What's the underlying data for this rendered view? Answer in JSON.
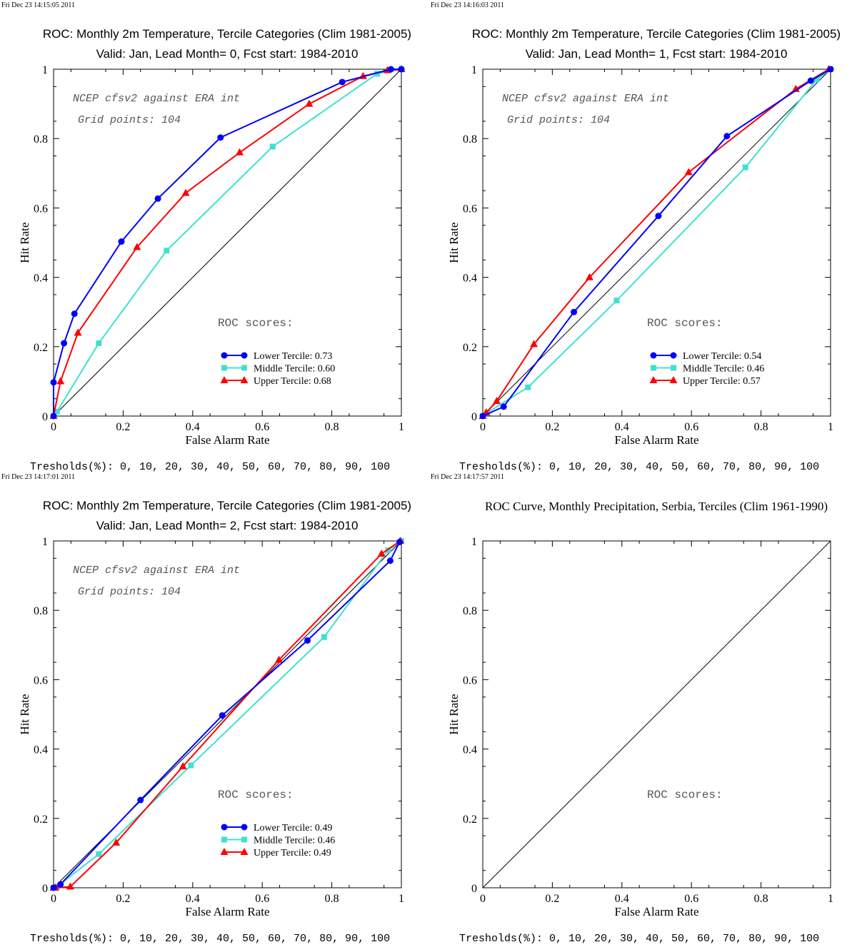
{
  "chart_data": [
    {
      "type": "line",
      "timestamp": "Fri Dec 23 14:15:05 2011",
      "title": "ROC: Monthly 2m Temperature, Tercile Categories (Clim 1981-2005)",
      "subtitle": "Valid: Jan, Lead Month= 0, Fcst start: 1984-2010",
      "xlabel": "False Alarm Rate",
      "ylabel": "Hit Rate",
      "xlim": [
        0,
        1
      ],
      "ylim": [
        0,
        1
      ],
      "xticks": [
        "0",
        "0.2",
        "0.4",
        "0.6",
        "0.8",
        "1"
      ],
      "yticks": [
        "0",
        "0.2",
        "0.4",
        "0.6",
        "0.8",
        "1"
      ],
      "note1": "NCEP cfsv2 against ERA int",
      "note2": "Grid points:  104",
      "scores_heading": "ROC scores:",
      "thresholds": "Tresholds(%): 0, 10, 20, 30, 40, 50, 60, 70, 80, 90, 100",
      "diagonal": true,
      "series": [
        {
          "name": "Lower Tercile: 0.73",
          "color": "#0000ff",
          "marker": "circle",
          "x": [
            0,
            0,
            0.03,
            0.06,
            0.195,
            0.3,
            0.48,
            0.83,
            0.97,
            1.0
          ],
          "y": [
            0,
            0.097,
            0.21,
            0.295,
            0.503,
            0.627,
            0.803,
            0.963,
            1.0,
            1.0
          ]
        },
        {
          "name": "Middle Tercile: 0.60",
          "color": "#40e0d0",
          "marker": "square",
          "x": [
            0,
            0.01,
            0.13,
            0.325,
            0.63,
            0.93,
            1.0
          ],
          "y": [
            0,
            0.013,
            0.21,
            0.477,
            0.777,
            0.987,
            1.0
          ]
        },
        {
          "name": "Upper Tercile: 0.68",
          "color": "#ff0000",
          "marker": "triangle",
          "x": [
            0,
            0.02,
            0.07,
            0.24,
            0.38,
            0.535,
            0.735,
            0.89,
            0.96,
            1.0
          ],
          "y": [
            0,
            0.1,
            0.24,
            0.487,
            0.643,
            0.76,
            0.9,
            0.98,
            0.997,
            1.0
          ]
        }
      ]
    },
    {
      "type": "line",
      "timestamp": "Fri Dec 23 14:16:03 2011",
      "title": "ROC: Monthly 2m Temperature, Tercile Categories (Clim 1981-2005)",
      "subtitle": "Valid: Jan, Lead Month= 1, Fcst start: 1984-2010",
      "xlabel": "False Alarm Rate",
      "ylabel": "Hit Rate",
      "xlim": [
        0,
        1
      ],
      "ylim": [
        0,
        1
      ],
      "xticks": [
        "0",
        "0.2",
        "0.4",
        "0.6",
        "0.8",
        "1"
      ],
      "yticks": [
        "0",
        "0.2",
        "0.4",
        "0.6",
        "0.8",
        "1"
      ],
      "note1": "NCEP cfsv2 against ERA int",
      "note2": "Grid points:  104",
      "scores_heading": "ROC scores:",
      "thresholds": "Tresholds(%): 0, 10, 20, 30, 40, 50, 60, 70, 80, 90, 100",
      "diagonal": true,
      "series": [
        {
          "name": "Lower Tercile: 0.54",
          "color": "#0000ff",
          "marker": "circle",
          "x": [
            0,
            0.06,
            0.262,
            0.505,
            0.702,
            0.943,
            1.0
          ],
          "y": [
            0,
            0.027,
            0.3,
            0.577,
            0.807,
            0.967,
            1.0
          ]
        },
        {
          "name": "Middle Tercile: 0.46",
          "color": "#40e0d0",
          "marker": "square",
          "x": [
            0,
            0.013,
            0.13,
            0.385,
            0.755,
            0.96,
            1.0
          ],
          "y": [
            0,
            0.01,
            0.083,
            0.333,
            0.717,
            0.97,
            1.0
          ]
        },
        {
          "name": "Upper Tercile: 0.57",
          "color": "#ff0000",
          "marker": "triangle",
          "x": [
            0,
            0.01,
            0.04,
            0.147,
            0.307,
            0.592,
            0.9,
            0.995
          ],
          "y": [
            0,
            0.01,
            0.043,
            0.207,
            0.4,
            0.703,
            0.943,
            1.0
          ]
        }
      ]
    },
    {
      "type": "line",
      "timestamp": "Fri Dec 23 14:17:01 2011",
      "title": "ROC: Monthly 2m Temperature, Tercile Categories (Clim 1981-2005)",
      "subtitle": "Valid: Jan, Lead Month= 2, Fcst start: 1984-2010",
      "xlabel": "False Alarm Rate",
      "ylabel": "Hit Rate",
      "xlim": [
        0,
        1
      ],
      "ylim": [
        0,
        1
      ],
      "xticks": [
        "0",
        "0.2",
        "0.4",
        "0.6",
        "0.8",
        "1"
      ],
      "yticks": [
        "0",
        "0.2",
        "0.4",
        "0.6",
        "0.8",
        "1"
      ],
      "note1": "NCEP cfsv2 against ERA int",
      "note2": "Grid points:  104",
      "scores_heading": "ROC scores:",
      "thresholds": "Tresholds(%): 0, 10, 20, 30, 40, 50, 60, 70, 80, 90, 100",
      "diagonal": true,
      "series": [
        {
          "name": "Lower Tercile: 0.49",
          "color": "#0000ff",
          "marker": "circle",
          "x": [
            0,
            0.02,
            0.25,
            0.485,
            0.73,
            0.968,
            0.995
          ],
          "y": [
            0,
            0.01,
            0.253,
            0.497,
            0.713,
            0.943,
            0.997
          ]
        },
        {
          "name": "Middle Tercile: 0.46",
          "color": "#40e0d0",
          "marker": "square",
          "x": [
            0,
            0.01,
            0.13,
            0.395,
            0.778,
            0.962,
            1.0
          ],
          "y": [
            0,
            0.003,
            0.097,
            0.353,
            0.723,
            0.973,
            1.0
          ]
        },
        {
          "name": "Upper Tercile: 0.49",
          "color": "#ff0000",
          "marker": "triangle",
          "x": [
            0,
            0.005,
            0.048,
            0.18,
            0.372,
            0.648,
            0.943,
            0.997
          ],
          "y": [
            0,
            0.0,
            0.003,
            0.13,
            0.35,
            0.657,
            0.963,
            1.0
          ]
        }
      ]
    },
    {
      "type": "line",
      "timestamp": "Fri Dec 23 14:17:57 2011",
      "title": "ROC Curve, Monthly Precipitation, Serbia, Terciles (Clim 1961-1990)",
      "subtitle": "",
      "xlabel": "False Alarm Rate",
      "ylabel": "Hit Rate",
      "xlim": [
        0,
        1
      ],
      "ylim": [
        0,
        1
      ],
      "xticks": [
        "0",
        "0.2",
        "0.4",
        "0.6",
        "0.8",
        "1"
      ],
      "yticks": [
        "0",
        "0.2",
        "0.4",
        "0.6",
        "0.8",
        "1"
      ],
      "note1": "",
      "note2": "",
      "scores_heading": "ROC scores:",
      "thresholds": "Tresholds(%): 0, 10, 20, 30, 40, 50, 60, 70, 80, 90, 100",
      "diagonal": true,
      "series": []
    }
  ]
}
